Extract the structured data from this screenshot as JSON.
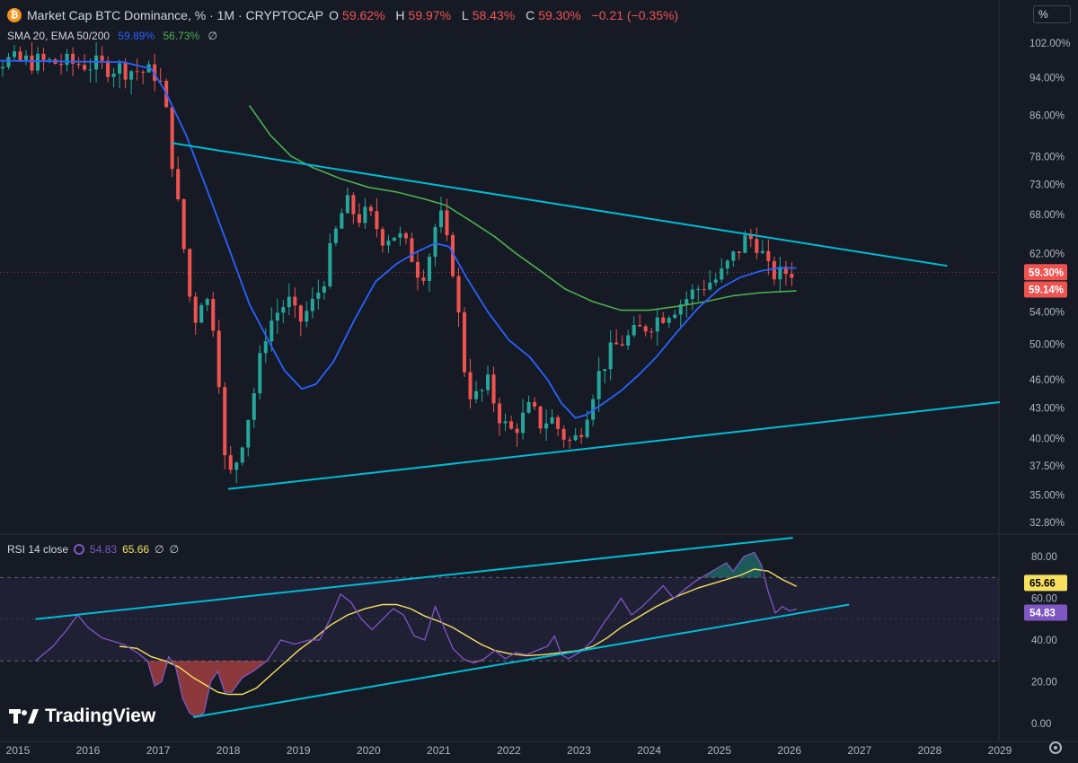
{
  "header": {
    "title": "Market Cap BTC Dominance, % · 1M · CRYPTOCAP",
    "ohlc": [
      {
        "label": "O",
        "value": "59.62%"
      },
      {
        "label": "H",
        "value": "59.97%"
      },
      {
        "label": "L",
        "value": "58.43%"
      },
      {
        "label": "C",
        "value": "59.30%"
      }
    ],
    "change": "−0.21 (−0.35%)",
    "currency_button": "%"
  },
  "indicators": {
    "label": "SMA 20, EMA 50/200",
    "sma20": "59.89%",
    "ema50": "56.73%",
    "ema200": "∅"
  },
  "rsi_header": {
    "label": "RSI 14 close",
    "rsi": "54.83",
    "ma": "65.66",
    "extra1": "∅",
    "extra2": "∅"
  },
  "branding": "TradingView",
  "colors": {
    "up": "#26a69a",
    "down": "#ef5350",
    "sma20": "#2962ff",
    "ema50": "#4caf50",
    "trendline": "#00bcd4",
    "rsi": "#7e57c2",
    "rsi_ma": "#f6e05e",
    "bg": "#161a25"
  },
  "icons": [
    "bitcoin-icon",
    "rsi-settings-icon",
    "tradingview-logo-icon",
    "settings-gear-icon"
  ],
  "chart_data": [
    {
      "type": "candlestick",
      "title": "Market Cap BTC Dominance, % · 1M · CRYPTOCAP",
      "y_axis": {
        "scale": "log",
        "ticks": [
          "102.00%",
          "94.00%",
          "86.00%",
          "78.00%",
          "73.00%",
          "68.00%",
          "62.00%",
          "54.00%",
          "50.00%",
          "46.00%",
          "43.00%",
          "40.00%",
          "37.50%",
          "35.00%",
          "32.80%"
        ],
        "tick_values": [
          102,
          94,
          86,
          78,
          73,
          68,
          62,
          54,
          50,
          46,
          43,
          40,
          37.5,
          35,
          32.8
        ],
        "labels_last": [
          {
            "text": "59.30%",
            "value": 59.3,
            "color": "#ef5350"
          },
          {
            "text": "59.14%",
            "value": 59.14,
            "color": "#ef5350"
          }
        ]
      },
      "x_axis": {
        "ticks": [
          "2015",
          "2016",
          "2017",
          "2018",
          "2019",
          "2020",
          "2021",
          "2022",
          "2023",
          "2024",
          "2025",
          "2026",
          "2027",
          "2028",
          "2029"
        ]
      },
      "price_anchors": [
        [
          2013.95,
          98
        ],
        [
          2014.5,
          98
        ],
        [
          2015.0,
          97.8
        ],
        [
          2016.0,
          97
        ],
        [
          2016.5,
          96
        ],
        [
          2017.0,
          94.8
        ],
        [
          2017.1,
          88
        ],
        [
          2017.25,
          72
        ],
        [
          2017.4,
          60
        ],
        [
          2017.5,
          52
        ],
        [
          2017.6,
          56
        ],
        [
          2017.75,
          55
        ],
        [
          2017.85,
          48
        ],
        [
          2017.95,
          38
        ],
        [
          2018.05,
          36.5
        ],
        [
          2018.2,
          40
        ],
        [
          2018.35,
          44
        ],
        [
          2018.55,
          52
        ],
        [
          2018.7,
          54
        ],
        [
          2018.85,
          55.5
        ],
        [
          2019.0,
          52.5
        ],
        [
          2019.2,
          55
        ],
        [
          2019.35,
          58
        ],
        [
          2019.5,
          64
        ],
        [
          2019.67,
          70
        ],
        [
          2019.85,
          67.5
        ],
        [
          2020.0,
          68
        ],
        [
          2020.2,
          64.5
        ],
        [
          2020.4,
          65
        ],
        [
          2020.6,
          62
        ],
        [
          2020.75,
          58.5
        ],
        [
          2020.9,
          63
        ],
        [
          2021.0,
          69
        ],
        [
          2021.1,
          64
        ],
        [
          2021.2,
          60
        ],
        [
          2021.3,
          52
        ],
        [
          2021.4,
          45
        ],
        [
          2021.55,
          44
        ],
        [
          2021.7,
          45.5
        ],
        [
          2021.85,
          42.5
        ],
        [
          2022.0,
          40.5
        ],
        [
          2022.15,
          41.5
        ],
        [
          2022.3,
          43
        ],
        [
          2022.45,
          41.5
        ],
        [
          2022.6,
          42
        ],
        [
          2022.75,
          40.5
        ],
        [
          2022.9,
          39.5
        ],
        [
          2023.0,
          40.5
        ],
        [
          2023.1,
          42.5
        ],
        [
          2023.25,
          46
        ],
        [
          2023.4,
          48.5
        ],
        [
          2023.55,
          50
        ],
        [
          2023.75,
          51
        ],
        [
          2024.0,
          52.5
        ],
        [
          2024.25,
          54
        ],
        [
          2024.5,
          55.5
        ],
        [
          2024.75,
          57.5
        ],
        [
          2025.0,
          58.5
        ],
        [
          2025.2,
          61.5
        ],
        [
          2025.4,
          64.5
        ],
        [
          2025.55,
          63.5
        ],
        [
          2025.7,
          59.5
        ],
        [
          2025.85,
          58.8
        ],
        [
          2026.0,
          59.6
        ],
        [
          2026.1,
          59.3
        ]
      ],
      "sma20_anchors": [
        [
          2013.95,
          98
        ],
        [
          2016.5,
          97.5
        ],
        [
          2016.9,
          96
        ],
        [
          2017.1,
          91
        ],
        [
          2017.4,
          82
        ],
        [
          2017.7,
          72
        ],
        [
          2018.0,
          63
        ],
        [
          2018.3,
          55
        ],
        [
          2018.6,
          50
        ],
        [
          2018.8,
          47
        ],
        [
          2019.05,
          45
        ],
        [
          2019.25,
          45.5
        ],
        [
          2019.5,
          48
        ],
        [
          2019.8,
          53
        ],
        [
          2020.1,
          58
        ],
        [
          2020.4,
          60.5
        ],
        [
          2020.7,
          62.3
        ],
        [
          2020.95,
          63.5
        ],
        [
          2021.15,
          63
        ],
        [
          2021.4,
          58.5
        ],
        [
          2021.7,
          54
        ],
        [
          2022.0,
          50.5
        ],
        [
          2022.3,
          48.5
        ],
        [
          2022.55,
          46
        ],
        [
          2022.75,
          43.5
        ],
        [
          2022.95,
          42
        ],
        [
          2023.1,
          42.3
        ],
        [
          2023.35,
          43.5
        ],
        [
          2023.6,
          44.8
        ],
        [
          2023.85,
          46.5
        ],
        [
          2024.1,
          48.5
        ],
        [
          2024.4,
          51.5
        ],
        [
          2024.7,
          54.5
        ],
        [
          2025.0,
          57
        ],
        [
          2025.3,
          58.6
        ],
        [
          2025.6,
          59.5
        ],
        [
          2025.85,
          59.9
        ],
        [
          2026.1,
          59.89
        ]
      ],
      "ema50_anchors": [
        [
          2018.3,
          88
        ],
        [
          2018.6,
          82
        ],
        [
          2018.9,
          78
        ],
        [
          2019.2,
          76
        ],
        [
          2019.6,
          74
        ],
        [
          2020.0,
          72.5
        ],
        [
          2020.4,
          71.7
        ],
        [
          2020.8,
          70.5
        ],
        [
          2021.1,
          69.5
        ],
        [
          2021.45,
          67
        ],
        [
          2021.8,
          64.5
        ],
        [
          2022.1,
          62
        ],
        [
          2022.45,
          59.5
        ],
        [
          2022.8,
          57
        ],
        [
          2023.2,
          55.3
        ],
        [
          2023.6,
          54.2
        ],
        [
          2024.0,
          54.2
        ],
        [
          2024.4,
          54.7
        ],
        [
          2024.8,
          55.3
        ],
        [
          2025.2,
          56.1
        ],
        [
          2025.6,
          56.5
        ],
        [
          2026.1,
          56.73
        ]
      ],
      "trendlines": [
        {
          "name": "upper",
          "from": [
            2017.2,
            80.5
          ],
          "to": [
            2028.25,
            60.2
          ]
        },
        {
          "name": "lower",
          "from": [
            2018.0,
            35.5
          ],
          "to": [
            2029.0,
            43.6
          ]
        }
      ],
      "last_price": 59.3
    },
    {
      "type": "line",
      "title": "RSI 14 close",
      "y_axis": {
        "ticks": [
          "80.00",
          "60.00",
          "40.00",
          "20.00",
          "0.00"
        ],
        "tick_values": [
          80,
          60,
          40,
          20,
          0
        ],
        "band": [
          30,
          70
        ],
        "labels_last": [
          {
            "text": "65.66",
            "value": 65.66,
            "color": "#f6e05e"
          },
          {
            "text": "54.83",
            "value": 54.83,
            "color": "#7e57c2"
          }
        ]
      },
      "series": [
        {
          "name": "RSI",
          "points": [
            [
              2015.25,
              30
            ],
            [
              2015.5,
              37
            ],
            [
              2015.7,
              45
            ],
            [
              2015.85,
              52
            ],
            [
              2016.0,
              46
            ],
            [
              2016.2,
              41
            ],
            [
              2016.5,
              38
            ],
            [
              2016.7,
              34
            ],
            [
              2016.85,
              30
            ],
            [
              2016.95,
              18
            ],
            [
              2017.05,
              20
            ],
            [
              2017.15,
              32
            ],
            [
              2017.25,
              27
            ],
            [
              2017.35,
              12
            ],
            [
              2017.45,
              5
            ],
            [
              2017.55,
              3
            ],
            [
              2017.65,
              5
            ],
            [
              2017.75,
              20
            ],
            [
              2017.85,
              25
            ],
            [
              2017.95,
              15
            ],
            [
              2018.05,
              15
            ],
            [
              2018.2,
              22
            ],
            [
              2018.35,
              25
            ],
            [
              2018.55,
              30
            ],
            [
              2018.75,
              40
            ],
            [
              2018.95,
              38
            ],
            [
              2019.15,
              40
            ],
            [
              2019.3,
              40
            ],
            [
              2019.45,
              50
            ],
            [
              2019.6,
              62
            ],
            [
              2019.75,
              58
            ],
            [
              2019.9,
              50
            ],
            [
              2020.05,
              45
            ],
            [
              2020.2,
              50
            ],
            [
              2020.35,
              55
            ],
            [
              2020.5,
              52
            ],
            [
              2020.65,
              42
            ],
            [
              2020.8,
              40
            ],
            [
              2020.95,
              56
            ],
            [
              2021.05,
              48
            ],
            [
              2021.2,
              36
            ],
            [
              2021.35,
              31
            ],
            [
              2021.5,
              29
            ],
            [
              2021.65,
              31
            ],
            [
              2021.8,
              35
            ],
            [
              2021.95,
              31
            ],
            [
              2022.1,
              34
            ],
            [
              2022.25,
              33
            ],
            [
              2022.4,
              35
            ],
            [
              2022.55,
              37
            ],
            [
              2022.65,
              42
            ],
            [
              2022.75,
              33
            ],
            [
              2022.85,
              31
            ],
            [
              2022.95,
              33
            ],
            [
              2023.05,
              35
            ],
            [
              2023.2,
              40
            ],
            [
              2023.35,
              48
            ],
            [
              2023.5,
              55
            ],
            [
              2023.6,
              60
            ],
            [
              2023.75,
              52
            ],
            [
              2023.9,
              56
            ],
            [
              2024.05,
              61
            ],
            [
              2024.2,
              66
            ],
            [
              2024.35,
              60
            ],
            [
              2024.5,
              64
            ],
            [
              2024.65,
              68
            ],
            [
              2024.8,
              71
            ],
            [
              2024.95,
              74
            ],
            [
              2025.1,
              77
            ],
            [
              2025.2,
              73
            ],
            [
              2025.35,
              80
            ],
            [
              2025.5,
              82
            ],
            [
              2025.6,
              76
            ],
            [
              2025.7,
              63
            ],
            [
              2025.8,
              53
            ],
            [
              2025.9,
              56
            ],
            [
              2026.0,
              54
            ],
            [
              2026.1,
              54.83
            ]
          ]
        },
        {
          "name": "RSI MA",
          "points": [
            [
              2016.45,
              37
            ],
            [
              2016.7,
              36
            ],
            [
              2016.9,
              32
            ],
            [
              2017.1,
              30
            ],
            [
              2017.3,
              27
            ],
            [
              2017.5,
              22
            ],
            [
              2017.7,
              18
            ],
            [
              2017.85,
              15
            ],
            [
              2018.0,
              14
            ],
            [
              2018.2,
              14
            ],
            [
              2018.4,
              17
            ],
            [
              2018.6,
              23
            ],
            [
              2018.8,
              29
            ],
            [
              2019.0,
              35
            ],
            [
              2019.2,
              40
            ],
            [
              2019.45,
              47
            ],
            [
              2019.7,
              52
            ],
            [
              2019.95,
              55
            ],
            [
              2020.2,
              57
            ],
            [
              2020.4,
              57
            ],
            [
              2020.6,
              55
            ],
            [
              2020.8,
              51.5
            ],
            [
              2021.0,
              49
            ],
            [
              2021.2,
              46
            ],
            [
              2021.4,
              42
            ],
            [
              2021.6,
              38
            ],
            [
              2021.8,
              35
            ],
            [
              2022.0,
              33.5
            ],
            [
              2022.25,
              32.5
            ],
            [
              2022.5,
              33
            ],
            [
              2022.75,
              34
            ],
            [
              2023.0,
              35
            ],
            [
              2023.2,
              37
            ],
            [
              2023.4,
              41
            ],
            [
              2023.6,
              46
            ],
            [
              2023.85,
              51
            ],
            [
              2024.1,
              56
            ],
            [
              2024.4,
              61
            ],
            [
              2024.7,
              65
            ],
            [
              2025.0,
              68
            ],
            [
              2025.3,
              71
            ],
            [
              2025.5,
              74
            ],
            [
              2025.7,
              73
            ],
            [
              2025.9,
              69
            ],
            [
              2026.1,
              65.66
            ]
          ]
        }
      ],
      "trendlines": [
        {
          "name": "rsi-upper",
          "from": [
            2015.25,
            50
          ],
          "to": [
            2026.05,
            89
          ]
        },
        {
          "name": "rsi-lower",
          "from": [
            2017.5,
            3
          ],
          "to": [
            2026.85,
            57
          ]
        }
      ]
    }
  ]
}
